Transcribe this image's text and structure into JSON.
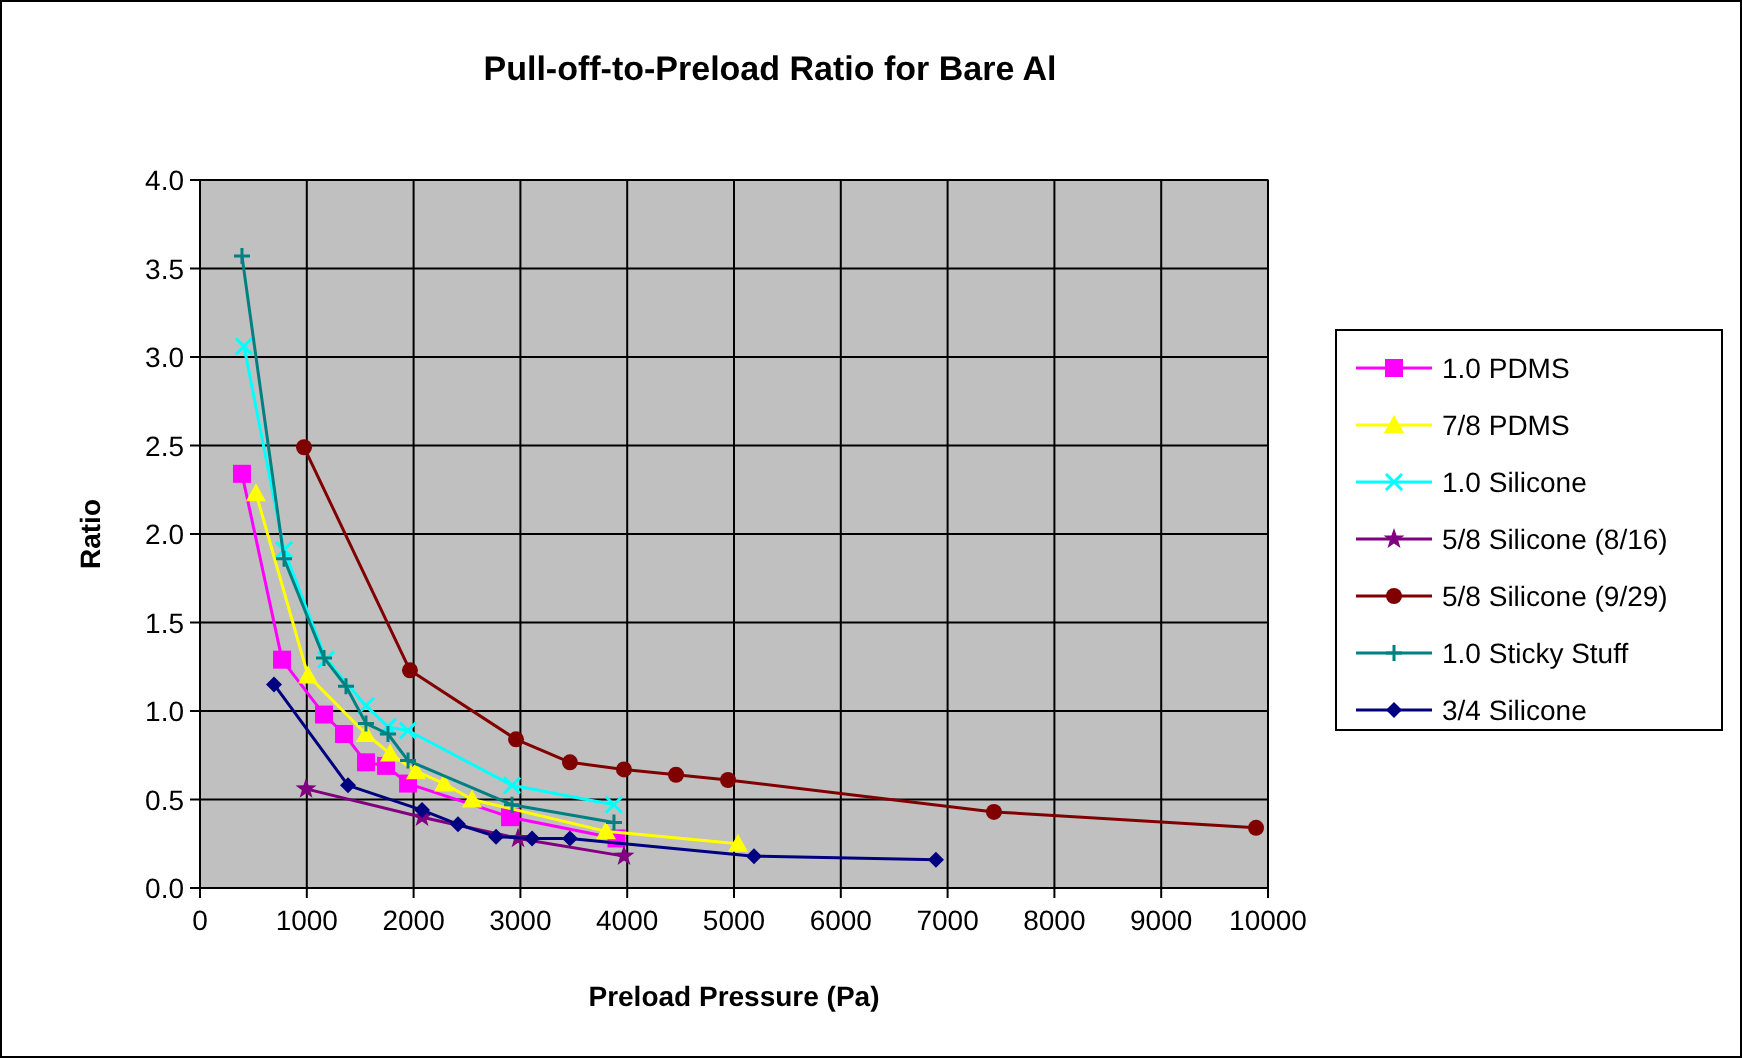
{
  "chart_data": {
    "type": "line",
    "title": "Pull-off-to-Preload Ratio for Bare Al",
    "xlabel": "Preload Pressure (Pa)",
    "ylabel": "Ratio",
    "xlim": [
      0,
      10000
    ],
    "xticks": [
      0,
      1000,
      2000,
      3000,
      4000,
      5000,
      6000,
      7000,
      8000,
      9000,
      10000
    ],
    "ylim": [
      0,
      4
    ],
    "yticks": [
      {
        "value": 0,
        "label": "0.0"
      },
      {
        "value": 0.5,
        "label": "0.5"
      },
      {
        "value": 1,
        "label": "1.0"
      },
      {
        "value": 1.5,
        "label": "1.5"
      },
      {
        "value": 2,
        "label": "2.0"
      },
      {
        "value": 2.5,
        "label": "2.5"
      },
      {
        "value": 3,
        "label": "3.0"
      },
      {
        "value": 3.5,
        "label": "3.5"
      },
      {
        "value": 4,
        "label": "4.0"
      }
    ],
    "grid": true,
    "legend": "right",
    "line_style": "solid",
    "series": [
      {
        "name": "1.0 PDMS",
        "color": "#ff00ff",
        "marker": "square",
        "x": [
          393,
          768,
          1161,
          1348,
          1554,
          1742,
          1948,
          2903,
          3900
        ],
        "values": [
          2.34,
          1.29,
          0.98,
          0.87,
          0.71,
          0.69,
          0.59,
          0.4,
          0.28
        ]
      },
      {
        "name": "7/8 PDMS",
        "color": "#ffff00",
        "marker": "triangle",
        "x": [
          524,
          1011,
          1554,
          1779,
          2022,
          2285,
          2547,
          3801,
          5037
        ],
        "values": [
          2.23,
          1.2,
          0.87,
          0.76,
          0.66,
          0.59,
          0.5,
          0.32,
          0.25
        ]
      },
      {
        "name": "1.0 Silicone",
        "color": "#00ffff",
        "marker": "cross",
        "x": [
          412,
          787,
          1180,
          1554,
          1760,
          1948,
          2921,
          3876
        ],
        "values": [
          3.06,
          1.91,
          1.29,
          1.03,
          0.91,
          0.89,
          0.58,
          0.47
        ]
      },
      {
        "name": "5/8 Silicone (8/16)",
        "color": "#800080",
        "marker": "star",
        "x": [
          993,
          2079,
          2978,
          3970
        ],
        "values": [
          0.56,
          0.4,
          0.28,
          0.18
        ]
      },
      {
        "name": "5/8 Silicone (9/29)",
        "color": "#800000",
        "marker": "circle",
        "x": [
          974,
          1966,
          2959,
          3464,
          3970,
          4457,
          4944,
          7434,
          9888
        ],
        "values": [
          2.49,
          1.23,
          0.84,
          0.71,
          0.67,
          0.64,
          0.61,
          0.43,
          0.34
        ]
      },
      {
        "name": "1.0 Sticky Stuff",
        "color": "#008080",
        "marker": "plus",
        "x": [
          393,
          787,
          1161,
          1367,
          1554,
          1760,
          1948,
          2921,
          3876
        ],
        "values": [
          3.57,
          1.86,
          1.3,
          1.14,
          0.93,
          0.87,
          0.72,
          0.47,
          0.37
        ]
      },
      {
        "name": "3/4 Silicone",
        "color": "#000080",
        "marker": "diamond",
        "x": [
          693,
          1386,
          2079,
          2416,
          2772,
          3109,
          3464,
          5187,
          6891
        ],
        "values": [
          1.15,
          0.58,
          0.44,
          0.36,
          0.29,
          0.28,
          0.28,
          0.18,
          0.16
        ]
      }
    ]
  }
}
